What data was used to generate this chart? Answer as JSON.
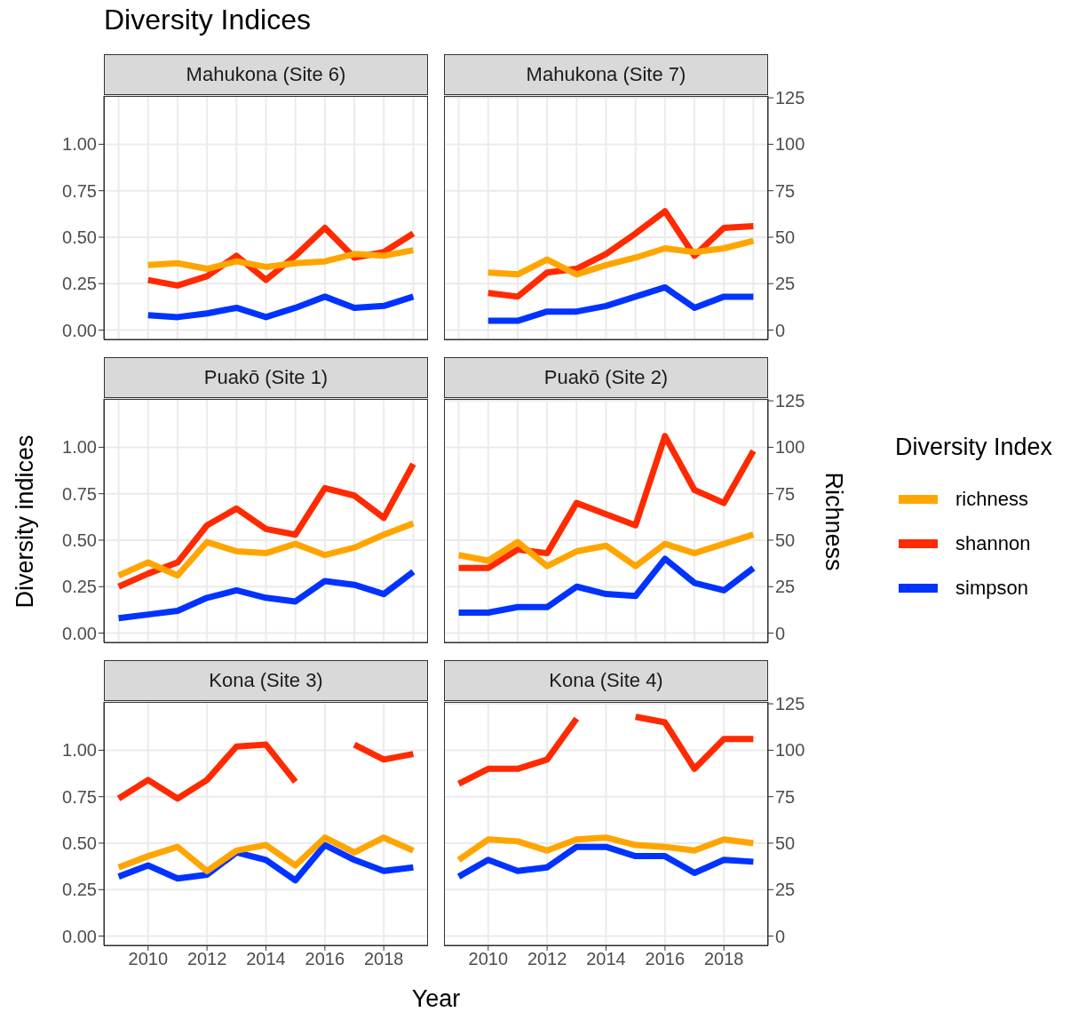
{
  "chart_data": [
    {
      "type": "line",
      "title": "Mahukona (Site 6)",
      "annotations": [
        "Diversity Indices"
      ],
      "categories": [
        null,
        null,
        null,
        null,
        null,
        null,
        null,
        null,
        null,
        null,
        null
      ],
      "series": [
        {
          "color": "#ffa500",
          "axis": "y2",
          "values": [
            null,
            35,
            36,
            33,
            37,
            34,
            36,
            37,
            41,
            40,
            43
          ]
        },
        {
          "color": "#ff2a00",
          "values": [
            null,
            0.27,
            0.24,
            0.29,
            0.4,
            0.27,
            0.4,
            0.55,
            0.39,
            0.42,
            0.52
          ]
        },
        {
          "color": "#0033ff",
          "values": [
            null,
            0.08,
            0.07,
            0.09,
            0.12,
            0.07,
            0.12,
            0.18,
            0.12,
            0.13,
            0.18
          ]
        }
      ],
      "ylim": [
        -0.05,
        1.26
      ],
      "yticks": [
        {
          "value": 0,
          "label": "0.00"
        },
        {
          "value": 0.25,
          "label": "0.25"
        },
        {
          "value": 0.5,
          "label": "0.50"
        },
        {
          "value": 0.75,
          "label": "0.75"
        },
        {
          "value": 1,
          "label": "1.00"
        }
      ],
      "y2lim": [
        -5,
        126
      ],
      "grid": true,
      "line_style": "solid",
      "marker": "none"
    },
    {
      "type": "line",
      "title": "Mahukona (Site 7)",
      "categories": [
        null,
        null,
        null,
        null,
        null,
        null,
        null,
        null,
        null,
        null,
        null
      ],
      "series": [
        {
          "color": "#ffa500",
          "values": [
            null,
            31,
            30,
            38,
            30,
            35,
            39,
            44,
            42,
            44,
            48
          ]
        },
        {
          "color": "#ff2a00",
          "axis": "y2",
          "values": [
            null,
            0.2,
            0.18,
            0.31,
            0.33,
            0.41,
            0.52,
            0.64,
            0.4,
            0.55,
            0.56
          ]
        },
        {
          "color": "#0033ff",
          "axis": "y2",
          "values": [
            null,
            0.05,
            0.05,
            0.1,
            0.1,
            0.13,
            0.18,
            0.23,
            0.12,
            0.18,
            0.18
          ]
        }
      ],
      "ylim": [
        -5,
        126
      ],
      "yticks": [
        0,
        25,
        50,
        75,
        100,
        125
      ],
      "y2lim": [
        -0.05,
        1.26
      ],
      "grid": true,
      "line_style": "solid",
      "marker": "none"
    },
    {
      "type": "line",
      "title": "Puakō (Site 1)",
      "ylabel": "Diversity indices",
      "categories": [
        null,
        null,
        null,
        null,
        null,
        null,
        null,
        null,
        null,
        null,
        null
      ],
      "series": [
        {
          "color": "#ffa500",
          "axis": "y2",
          "values": [
            31,
            38,
            31,
            49,
            44,
            43,
            48,
            42,
            46,
            53,
            59
          ]
        },
        {
          "color": "#ff2a00",
          "values": [
            0.25,
            0.32,
            0.38,
            0.58,
            0.67,
            0.56,
            0.53,
            0.78,
            0.74,
            0.62,
            0.91
          ]
        },
        {
          "color": "#0033ff",
          "values": [
            0.08,
            0.1,
            0.12,
            0.19,
            0.23,
            0.19,
            0.17,
            0.28,
            0.26,
            0.21,
            0.33
          ]
        }
      ],
      "ylim": [
        -0.05,
        1.26
      ],
      "yticks": [
        {
          "value": 0,
          "label": "0.00"
        },
        {
          "value": 0.25,
          "label": "0.25"
        },
        {
          "value": 0.5,
          "label": "0.50"
        },
        {
          "value": 0.75,
          "label": "0.75"
        },
        {
          "value": 1,
          "label": "1.00"
        }
      ],
      "y2lim": [
        -5,
        126
      ],
      "grid": true,
      "line_style": "solid",
      "marker": "none"
    },
    {
      "type": "line",
      "title": "Puakō (Site 2)",
      "ylabel": "Richness",
      "legend_title": "Diversity Index",
      "legend": "right",
      "categories": [
        null,
        null,
        null,
        null,
        null,
        null,
        null,
        null,
        null,
        null,
        null
      ],
      "series": [
        {
          "name": "richness",
          "color": "#ffa500",
          "values": [
            42,
            39,
            49,
            36,
            44,
            47,
            36,
            48,
            43,
            48,
            53
          ]
        },
        {
          "name": "shannon",
          "color": "#ff2a00",
          "axis": "y2",
          "values": [
            0.35,
            0.35,
            0.45,
            0.43,
            0.7,
            0.64,
            0.58,
            1.06,
            0.77,
            0.7,
            0.98
          ]
        },
        {
          "name": "simpson",
          "color": "#0033ff",
          "axis": "y2",
          "values": [
            0.11,
            0.11,
            0.14,
            0.14,
            0.25,
            0.21,
            0.2,
            0.4,
            0.27,
            0.23,
            0.35
          ]
        }
      ],
      "ylim": [
        -5,
        126
      ],
      "yticks": [
        0,
        25,
        50,
        75,
        100,
        125
      ],
      "y2lim": [
        -0.05,
        1.26
      ],
      "grid": true,
      "line_style": "solid",
      "marker": "none"
    },
    {
      "type": "line",
      "title": "Kona (Site 3)",
      "xlabel": "Year",
      "x": [
        2009,
        2010,
        2011,
        2012,
        2013,
        2014,
        2015,
        2016,
        2017,
        2018,
        2019
      ],
      "series": [
        {
          "color": "#ffa500",
          "values": [
            37,
            43,
            48,
            35,
            46,
            49,
            38,
            53,
            45,
            53,
            46
          ]
        },
        {
          "color": "#ff2a00",
          "axis": "y2",
          "values": [
            0.74,
            0.84,
            0.74,
            0.84,
            1.02,
            1.03,
            0.83,
            null,
            1.03,
            0.95,
            0.98
          ]
        },
        {
          "color": "#0033ff",
          "axis": "y2",
          "values": [
            0.32,
            0.38,
            0.31,
            0.33,
            0.45,
            0.41,
            0.3,
            0.49,
            0.41,
            0.35,
            0.37
          ]
        }
      ],
      "xlim": [
        2008.5,
        2019.5
      ],
      "xticks": [
        2010,
        2012,
        2014,
        2016,
        2018
      ],
      "ylim": [
        -5,
        126
      ],
      "y2lim": [
        -0.05,
        1.26
      ],
      "y2ticks": [
        {
          "value": 0,
          "label": "0.00"
        },
        {
          "value": 0.25,
          "label": "0.25"
        },
        {
          "value": 0.5,
          "label": "0.50"
        },
        {
          "value": 0.75,
          "label": "0.75"
        },
        {
          "value": 1,
          "label": "1.00"
        }
      ],
      "grid": true,
      "line_style": "solid",
      "marker": "none"
    },
    {
      "type": "line",
      "title": "Kona (Site 4)",
      "x": [
        2009,
        2010,
        2011,
        2012,
        2013,
        2014,
        2015,
        2016,
        2017,
        2018,
        2019
      ],
      "series": [
        {
          "color": "#ffa500",
          "axis": "y2",
          "values": [
            41,
            52,
            51,
            46,
            52,
            53,
            49,
            48,
            46,
            52,
            50
          ]
        },
        {
          "color": "#ff2a00",
          "values": [
            0.82,
            0.9,
            0.9,
            0.95,
            1.17,
            null,
            1.18,
            1.15,
            0.9,
            1.06,
            1.06
          ]
        },
        {
          "color": "#0033ff",
          "values": [
            0.32,
            0.41,
            0.35,
            0.37,
            0.48,
            0.48,
            0.43,
            0.43,
            0.34,
            0.41,
            0.4
          ]
        }
      ],
      "xlim": [
        2008.5,
        2019.5
      ],
      "xticks": [
        2010,
        2012,
        2014,
        2016,
        2018
      ],
      "ylim": [
        -0.05,
        1.26
      ],
      "y2lim": [
        -5,
        126
      ],
      "y2ticks": [
        0,
        25,
        50,
        75,
        100,
        125
      ],
      "grid": true,
      "line_style": "solid",
      "marker": "none"
    }
  ]
}
